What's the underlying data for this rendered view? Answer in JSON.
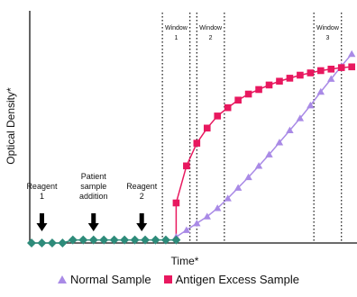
{
  "chart_data": {
    "type": "line",
    "xlabel": "Time*",
    "ylabel": "Optical Density*",
    "xlim": [
      0,
      47
    ],
    "ylim": [
      0,
      30
    ],
    "windows": [
      {
        "label_line1": "Window",
        "label_line2": "1",
        "start": 19,
        "end": 23
      },
      {
        "label_line1": "Window",
        "label_line2": "2",
        "start": 24,
        "end": 28
      },
      {
        "label_line1": "Window",
        "label_line2": "3",
        "start": 41,
        "end": 45
      }
    ],
    "annotations": [
      {
        "lines": [
          "Reagent",
          "1"
        ],
        "x": 1.5
      },
      {
        "lines": [
          "Patient",
          "sample",
          "addition"
        ],
        "x": 9
      },
      {
        "lines": [
          "Reagent",
          "2"
        ],
        "x": 16
      }
    ],
    "baseline": {
      "color": "#2e8b7a",
      "x": [
        0,
        1.5,
        3,
        4.5,
        6,
        7.5,
        9,
        10.5,
        12,
        13.5,
        15,
        16.5,
        18,
        19.5,
        21
      ],
      "y": [
        0,
        0,
        0,
        0,
        0.4,
        0.4,
        0.4,
        0.4,
        0.4,
        0.4,
        0.4,
        0.4,
        0.4,
        0.4,
        0.4
      ]
    },
    "series": [
      {
        "name": "Normal Sample",
        "marker": "triangle",
        "color": "#a98ae6",
        "x": [
          21,
          22.5,
          24,
          25.5,
          27,
          28.5,
          30,
          31.5,
          33,
          34.5,
          36,
          37.5,
          39,
          40.5,
          42,
          43.5,
          45,
          46.5
        ],
        "y": [
          0.8,
          1.7,
          2.6,
          3.5,
          4.6,
          5.9,
          7.3,
          8.7,
          10.2,
          11.7,
          13.3,
          14.9,
          16.5,
          18.2,
          20.0,
          21.7,
          23.4,
          25.0
        ]
      },
      {
        "name": "Antigen Excess Sample",
        "marker": "square",
        "color": "#e8185f",
        "x": [
          21,
          22.5,
          24,
          25.5,
          27,
          28.5,
          30,
          31.5,
          33,
          34.5,
          36,
          37.5,
          39,
          40.5,
          42,
          43.5,
          45,
          46.5
        ],
        "y": [
          5.3,
          10.2,
          13.2,
          15.2,
          16.8,
          17.9,
          18.9,
          19.7,
          20.3,
          20.9,
          21.4,
          21.8,
          22.2,
          22.5,
          22.8,
          23.0,
          23.2,
          23.3
        ]
      }
    ],
    "legend": {
      "placement": "bottom"
    }
  }
}
